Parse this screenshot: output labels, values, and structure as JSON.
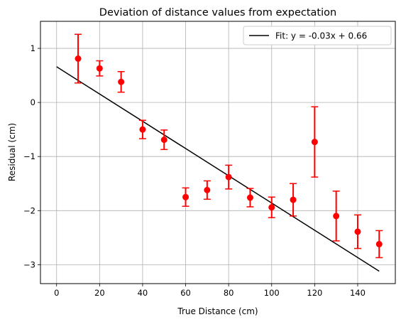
{
  "chart_data": {
    "type": "scatter",
    "title": "Deviation of distance values from expectation",
    "xlabel": "True Distance (cm)",
    "ylabel": "Residual (cm)",
    "xlim": [
      -7.5,
      157.5
    ],
    "ylim": [
      -3.35,
      1.5
    ],
    "x_ticks": [
      0,
      20,
      40,
      60,
      80,
      100,
      120,
      140
    ],
    "y_ticks": [
      -3,
      -2,
      -1,
      0,
      1
    ],
    "grid": true,
    "legend": {
      "position": "top-right",
      "entries": [
        "Fit: y = -0.03x + 0.66"
      ]
    },
    "series": [
      {
        "kind": "errorbar",
        "color": "#ff0000",
        "x": [
          10,
          20,
          30,
          40,
          50,
          60,
          70,
          80,
          90,
          100,
          110,
          120,
          130,
          140,
          150
        ],
        "y": [
          0.81,
          0.63,
          0.38,
          -0.5,
          -0.69,
          -1.75,
          -1.62,
          -1.38,
          -1.76,
          -1.94,
          -1.8,
          -0.73,
          -2.1,
          -2.39,
          -2.62
        ],
        "yerr": [
          0.45,
          0.14,
          0.19,
          0.17,
          0.18,
          0.17,
          0.17,
          0.22,
          0.17,
          0.19,
          0.3,
          0.65,
          0.46,
          0.31,
          0.25
        ]
      },
      {
        "kind": "line",
        "name": "Fit: y = -0.03x + 0.66",
        "color": "#000000",
        "x": [
          0,
          150
        ],
        "y": [
          0.66,
          -3.12
        ]
      }
    ]
  }
}
